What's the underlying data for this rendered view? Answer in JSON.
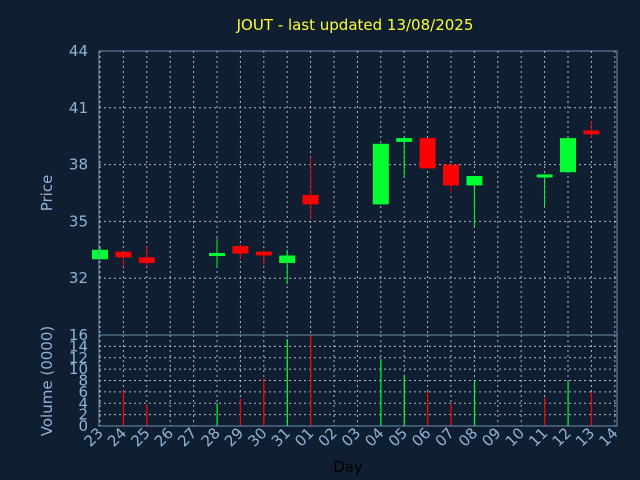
{
  "chart_data": [
    {
      "type": "candlestick",
      "title": "JOUT - last updated 13/08/2025",
      "ylabel": "Price",
      "xlabel": "",
      "ylim": [
        29,
        44
      ],
      "yticks": [
        "32",
        "35",
        "38",
        "41",
        "44"
      ],
      "grid": true,
      "colors": {
        "up": "#00ff33",
        "down": "#ff0000"
      },
      "categories": [
        "23",
        "24",
        "25",
        "26",
        "27",
        "28",
        "29",
        "30",
        "31",
        "01",
        "02",
        "03",
        "04",
        "05",
        "06",
        "07",
        "08",
        "09",
        "10",
        "11",
        "12",
        "13",
        "14"
      ],
      "candles": [
        {
          "x": "23",
          "open": 33.0,
          "high": 33.6,
          "low": 33.0,
          "close": 33.5
        },
        {
          "x": "24",
          "open": 33.4,
          "high": 33.4,
          "low": 32.6,
          "close": 33.1
        },
        {
          "x": "25",
          "open": 33.1,
          "high": 33.7,
          "low": 32.6,
          "close": 32.8
        },
        {
          "x": "28",
          "open": 33.2,
          "high": 34.1,
          "low": 32.6,
          "close": 33.3
        },
        {
          "x": "29",
          "open": 33.7,
          "high": 33.8,
          "low": 33.0,
          "close": 33.3
        },
        {
          "x": "30",
          "open": 33.4,
          "high": 33.5,
          "low": 32.7,
          "close": 33.2
        },
        {
          "x": "31",
          "open": 32.8,
          "high": 33.5,
          "low": 31.7,
          "close": 33.2
        },
        {
          "x": "01",
          "open": 36.4,
          "high": 38.4,
          "low": 35.1,
          "close": 35.9
        },
        {
          "x": "04",
          "open": 35.9,
          "high": 39.1,
          "low": 35.9,
          "close": 39.1
        },
        {
          "x": "05",
          "open": 39.2,
          "high": 39.5,
          "low": 37.3,
          "close": 39.4
        },
        {
          "x": "06",
          "open": 39.4,
          "high": 39.4,
          "low": 37.8,
          "close": 37.8
        },
        {
          "x": "07",
          "open": 38.0,
          "high": 38.0,
          "low": 36.5,
          "close": 36.9
        },
        {
          "x": "08",
          "open": 36.9,
          "high": 37.4,
          "low": 34.7,
          "close": 37.4
        },
        {
          "x": "11",
          "open": 37.4,
          "high": 37.5,
          "low": 35.8,
          "close": 37.4
        },
        {
          "x": "12",
          "open": 37.6,
          "high": 39.4,
          "low": 37.6,
          "close": 39.4
        },
        {
          "x": "13",
          "open": 39.8,
          "high": 40.3,
          "low": 39.4,
          "close": 39.6
        }
      ]
    },
    {
      "type": "bar",
      "ylabel": "Volume (0000)",
      "xlabel": "Day",
      "ylim": [
        0,
        16
      ],
      "yticks": [
        "0",
        "2",
        "4",
        "6",
        "8",
        "10",
        "12",
        "14",
        "16"
      ],
      "grid": true,
      "categories": [
        "23",
        "24",
        "25",
        "26",
        "27",
        "28",
        "29",
        "30",
        "31",
        "01",
        "02",
        "03",
        "04",
        "05",
        "06",
        "07",
        "08",
        "09",
        "10",
        "11",
        "12",
        "13",
        "14"
      ],
      "bars": [
        {
          "x": "24",
          "value": 6.2,
          "dir": "down"
        },
        {
          "x": "25",
          "value": 3.8,
          "dir": "down"
        },
        {
          "x": "28",
          "value": 4.0,
          "dir": "up"
        },
        {
          "x": "29",
          "value": 4.8,
          "dir": "down"
        },
        {
          "x": "30",
          "value": 8.4,
          "dir": "down"
        },
        {
          "x": "31",
          "value": 15.3,
          "dir": "up"
        },
        {
          "x": "01",
          "value": 15.9,
          "dir": "down"
        },
        {
          "x": "04",
          "value": 11.8,
          "dir": "up"
        },
        {
          "x": "05",
          "value": 9.0,
          "dir": "up"
        },
        {
          "x": "06",
          "value": 6.0,
          "dir": "down"
        },
        {
          "x": "07",
          "value": 4.0,
          "dir": "down"
        },
        {
          "x": "08",
          "value": 8.0,
          "dir": "up"
        },
        {
          "x": "11",
          "value": 5.0,
          "dir": "down"
        },
        {
          "x": "12",
          "value": 7.8,
          "dir": "up"
        },
        {
          "x": "13",
          "value": 6.0,
          "dir": "down"
        }
      ]
    }
  ]
}
